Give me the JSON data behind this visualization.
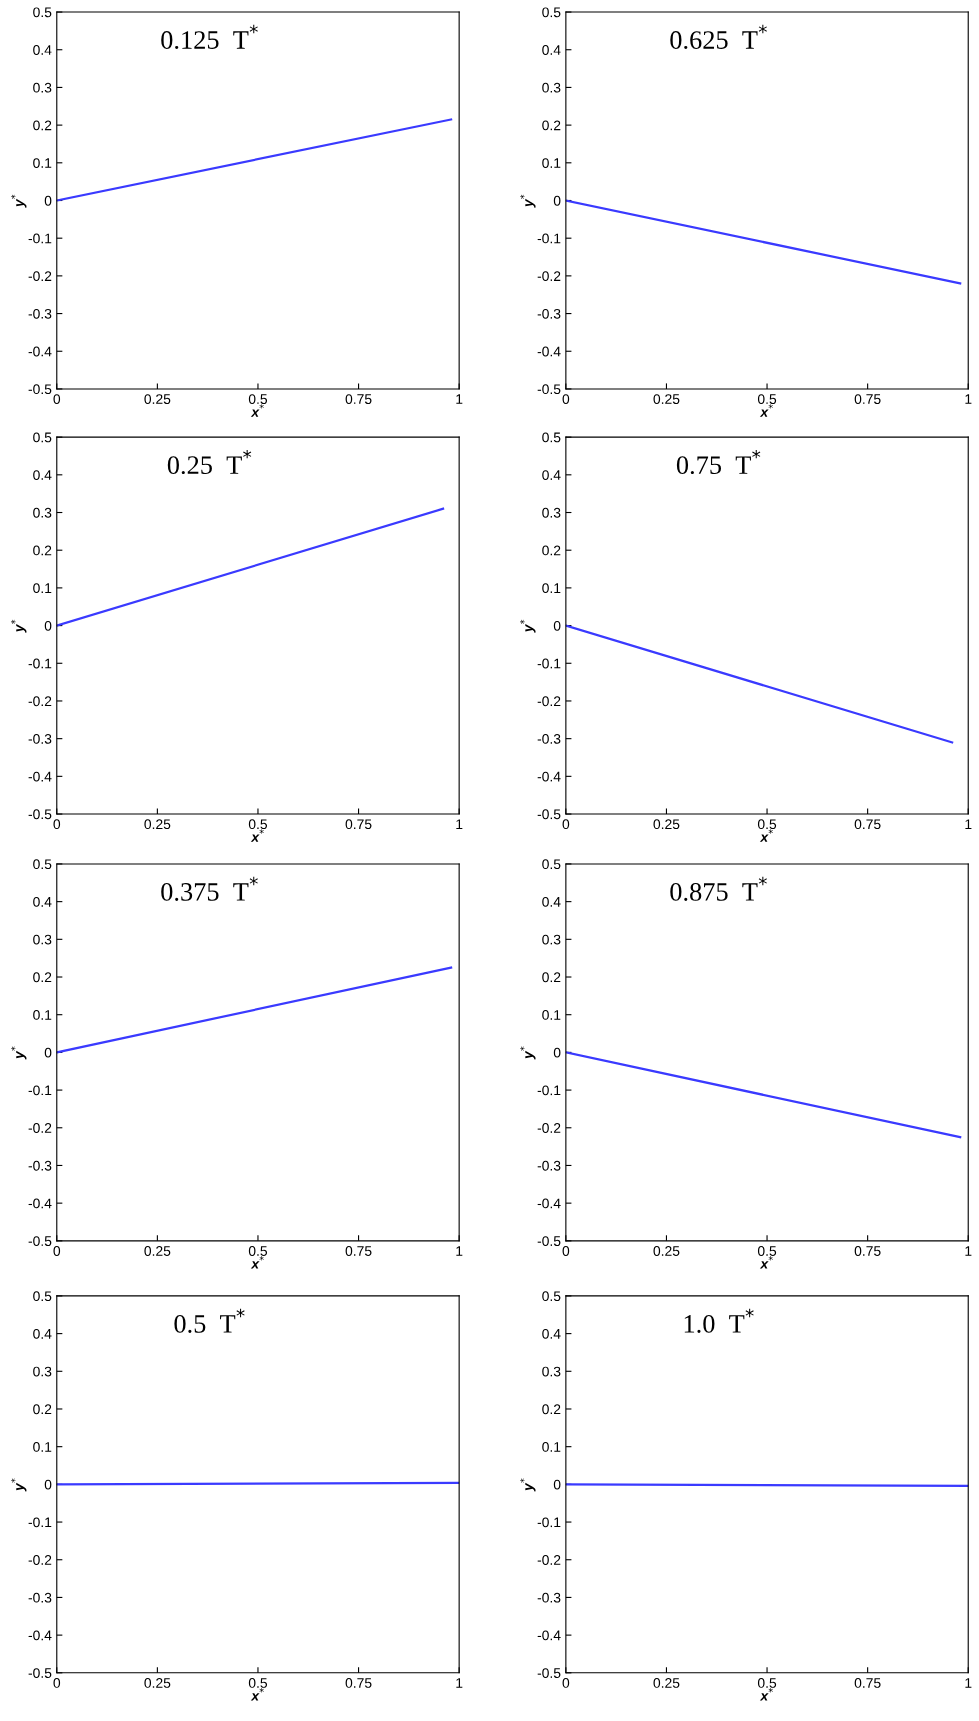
{
  "chart_data": [
    {
      "type": "line",
      "title": "0.125  T$^{*}$",
      "xlabel": "x$^{*}$",
      "ylabel": "y$^{*}$",
      "x": [
        0,
        0.98
      ],
      "series": [
        {
          "color": "#3a3aff",
          "values": [
            0,
            0.215
          ]
        }
      ],
      "xlim": [
        0,
        1
      ],
      "ylim": [
        -0.5,
        0.5
      ],
      "xticks": [
        0,
        0.25,
        0.5,
        0.75,
        1
      ],
      "yticks": [
        -0.5,
        -0.4,
        -0.3,
        -0.2,
        -0.1,
        0,
        0.1,
        0.2,
        0.3,
        0.4,
        0.5
      ],
      "grid": false,
      "marker": "none",
      "line_style": "solid"
    },
    {
      "type": "line",
      "title": "0.625  T$^{*}$",
      "xlabel": "x$^{*}$",
      "ylabel": "y$^{*}$",
      "x": [
        0,
        0.98
      ],
      "series": [
        {
          "color": "#3a3aff",
          "values": [
            0,
            -0.22
          ]
        }
      ],
      "xlim": [
        0,
        1
      ],
      "ylim": [
        -0.5,
        0.5
      ],
      "xticks": [
        0,
        0.25,
        0.5,
        0.75,
        1
      ],
      "yticks": [
        -0.5,
        -0.4,
        -0.3,
        -0.2,
        -0.1,
        0,
        0.1,
        0.2,
        0.3,
        0.4,
        0.5
      ],
      "grid": false,
      "marker": "none",
      "line_style": "solid"
    },
    {
      "type": "line",
      "title": "0.25  T$^{*}$",
      "xlabel": "x$^{*}$",
      "ylabel": "y$^{*}$",
      "x": [
        0,
        0.96
      ],
      "series": [
        {
          "color": "#3a3aff",
          "values": [
            0,
            0.31
          ]
        }
      ],
      "xlim": [
        0,
        1
      ],
      "ylim": [
        -0.5,
        0.5
      ],
      "xticks": [
        0,
        0.25,
        0.5,
        0.75,
        1
      ],
      "yticks": [
        -0.5,
        -0.4,
        -0.3,
        -0.2,
        -0.1,
        0,
        0.1,
        0.2,
        0.3,
        0.4,
        0.5
      ],
      "grid": false,
      "marker": "none",
      "line_style": "solid"
    },
    {
      "type": "line",
      "title": "0.75  T$^{*}$",
      "xlabel": "x$^{*}$",
      "ylabel": "y$^{*}$",
      "x": [
        0,
        0.96
      ],
      "series": [
        {
          "color": "#3a3aff",
          "values": [
            0,
            -0.31
          ]
        }
      ],
      "xlim": [
        0,
        1
      ],
      "ylim": [
        -0.5,
        0.5
      ],
      "xticks": [
        0,
        0.25,
        0.5,
        0.75,
        1
      ],
      "yticks": [
        -0.5,
        -0.4,
        -0.3,
        -0.2,
        -0.1,
        0,
        0.1,
        0.2,
        0.3,
        0.4,
        0.5
      ],
      "grid": false,
      "marker": "none",
      "line_style": "solid"
    },
    {
      "type": "line",
      "title": "0.375  T$^{*}$",
      "xlabel": "x$^{*}$",
      "ylabel": "y$^{*}$",
      "x": [
        0,
        0.98
      ],
      "series": [
        {
          "color": "#3a3aff",
          "values": [
            0,
            0.225
          ]
        }
      ],
      "xlim": [
        0,
        1
      ],
      "ylim": [
        -0.5,
        0.5
      ],
      "xticks": [
        0,
        0.25,
        0.5,
        0.75,
        1
      ],
      "yticks": [
        -0.5,
        -0.4,
        -0.3,
        -0.2,
        -0.1,
        0,
        0.1,
        0.2,
        0.3,
        0.4,
        0.5
      ],
      "grid": false,
      "marker": "none",
      "line_style": "solid"
    },
    {
      "type": "line",
      "title": "0.875  T$^{*}$",
      "xlabel": "x$^{*}$",
      "ylabel": "y$^{*}$",
      "x": [
        0,
        0.98
      ],
      "series": [
        {
          "color": "#3a3aff",
          "values": [
            0,
            -0.225
          ]
        }
      ],
      "xlim": [
        0,
        1
      ],
      "ylim": [
        -0.5,
        0.5
      ],
      "xticks": [
        0,
        0.25,
        0.5,
        0.75,
        1
      ],
      "yticks": [
        -0.5,
        -0.4,
        -0.3,
        -0.2,
        -0.1,
        0,
        0.1,
        0.2,
        0.3,
        0.4,
        0.5
      ],
      "grid": false,
      "marker": "none",
      "line_style": "solid"
    },
    {
      "type": "line",
      "title": "0.5  T$^{*}$",
      "xlabel": "x$^{*}$",
      "ylabel": "y$^{*}$",
      "x": [
        0,
        1
      ],
      "series": [
        {
          "color": "#3a3aff",
          "values": [
            0,
            0.004
          ]
        }
      ],
      "xlim": [
        0,
        1
      ],
      "ylim": [
        -0.5,
        0.5
      ],
      "xticks": [
        0,
        0.25,
        0.5,
        0.75,
        1
      ],
      "yticks": [
        -0.5,
        -0.4,
        -0.3,
        -0.2,
        -0.1,
        0,
        0.1,
        0.2,
        0.3,
        0.4,
        0.5
      ],
      "grid": false,
      "marker": "none",
      "line_style": "solid"
    },
    {
      "type": "line",
      "title": "1.0  T$^{*}$",
      "xlabel": "x$^{*}$",
      "ylabel": "y$^{*}$",
      "x": [
        0,
        1
      ],
      "series": [
        {
          "color": "#3a3aff",
          "values": [
            0,
            -0.004
          ]
        }
      ],
      "xlim": [
        0,
        1
      ],
      "ylim": [
        -0.5,
        0.5
      ],
      "xticks": [
        0,
        0.25,
        0.5,
        0.75,
        1
      ],
      "yticks": [
        -0.5,
        -0.4,
        -0.3,
        -0.2,
        -0.1,
        0,
        0.1,
        0.2,
        0.3,
        0.4,
        0.5
      ],
      "grid": false,
      "marker": "none",
      "line_style": "solid"
    }
  ]
}
